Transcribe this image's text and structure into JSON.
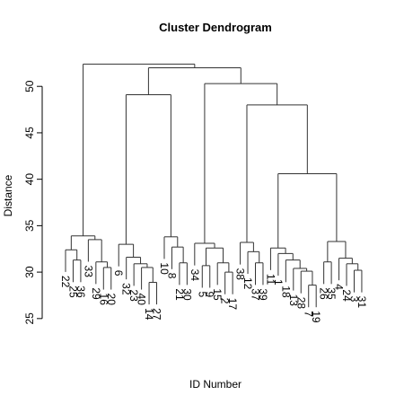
{
  "chart_data": {
    "type": "dendrogram",
    "title": "Cluster Dendrogram",
    "ylabel": "Distance",
    "xlabel": "ID Number",
    "ylim": [
      24.5,
      53.5
    ],
    "yticks": [
      25,
      30,
      35,
      40,
      45,
      50
    ],
    "color": "#333333",
    "tree": {
      "height": 52.4,
      "children": [
        {
          "height": 33.9,
          "children": [
            {
              "height": 32.4,
              "children": [
                {
                  "label": "22"
                },
                {
                  "height": 31.3,
                  "children": [
                    {
                      "label": "25"
                    },
                    {
                      "label": "36"
                    }
                  ]
                }
              ]
            },
            {
              "height": 33.5,
              "children": [
                {
                  "label": "33"
                },
                {
                  "height": 31.1,
                  "children": [
                    {
                      "label": "29"
                    },
                    {
                      "height": 30.5,
                      "children": [
                        {
                          "label": "16"
                        },
                        {
                          "label": "20"
                        }
                      ]
                    }
                  ]
                }
              ]
            }
          ]
        },
        {
          "height": 52.0,
          "children": [
            {
              "height": 49.1,
              "children": [
                {
                  "height": 33.0,
                  "children": [
                    {
                      "label": "6"
                    },
                    {
                      "height": 31.6,
                      "children": [
                        {
                          "label": "32"
                        },
                        {
                          "height": 30.9,
                          "children": [
                            {
                              "label": "23"
                            },
                            {
                              "height": 30.5,
                              "children": [
                                {
                                  "label": "40"
                                },
                                {
                                  "height": 28.9,
                                  "children": [
                                    {
                                      "label": "14"
                                    },
                                    {
                                      "label": "27"
                                    }
                                  ]
                                }
                              ]
                            }
                          ]
                        }
                      ]
                    }
                  ]
                },
                {
                  "height": 33.8,
                  "children": [
                    {
                      "label": "10"
                    },
                    {
                      "height": 32.7,
                      "children": [
                        {
                          "label": "8"
                        },
                        {
                          "height": 31.0,
                          "children": [
                            {
                              "label": "21"
                            },
                            {
                              "label": "30"
                            }
                          ]
                        }
                      ]
                    }
                  ]
                }
              ]
            },
            {
              "height": 50.3,
              "children": [
                {
                  "height": 33.1,
                  "children": [
                    {
                      "label": "34"
                    },
                    {
                      "height": 32.6,
                      "children": [
                        {
                          "height": 30.7,
                          "children": [
                            {
                              "label": "5"
                            },
                            {
                              "label": "9"
                            }
                          ]
                        },
                        {
                          "height": 31.0,
                          "children": [
                            {
                              "label": "15"
                            },
                            {
                              "height": 30.0,
                              "children": [
                                {
                                  "label": "2"
                                },
                                {
                                  "label": "17"
                                }
                              ]
                            }
                          ]
                        }
                      ]
                    }
                  ]
                },
                {
                  "height": 48.0,
                  "children": [
                    {
                      "height": 33.2,
                      "children": [
                        {
                          "label": "38"
                        },
                        {
                          "height": 32.2,
                          "children": [
                            {
                              "label": "12"
                            },
                            {
                              "height": 31.0,
                              "children": [
                                {
                                  "label": "37"
                                },
                                {
                                  "label": "39"
                                }
                              ]
                            }
                          ]
                        }
                      ]
                    },
                    {
                      "height": 40.6,
                      "children": [
                        {
                          "height": 32.6,
                          "children": [
                            {
                              "label": "11"
                            },
                            {
                              "height": 32.0,
                              "children": [
                                {
                                  "label": "1"
                                },
                                {
                                  "height": 31.3,
                                  "children": [
                                    {
                                      "label": "18"
                                    },
                                    {
                                      "height": 30.4,
                                      "children": [
                                        {
                                          "label": "13"
                                        },
                                        {
                                          "height": 30.1,
                                          "children": [
                                            {
                                              "label": "28"
                                            },
                                            {
                                              "height": 28.6,
                                              "children": [
                                                {
                                                  "label": "7"
                                                },
                                                {
                                                  "label": "19"
                                                }
                                              ]
                                            }
                                          ]
                                        }
                                      ]
                                    }
                                  ]
                                }
                              ]
                            }
                          ]
                        },
                        {
                          "height": 33.3,
                          "children": [
                            {
                              "height": 31.1,
                              "children": [
                                {
                                  "label": "26"
                                },
                                {
                                  "label": "35"
                                }
                              ]
                            },
                            {
                              "height": 31.5,
                              "children": [
                                {
                                  "label": "4"
                                },
                                {
                                  "height": 30.9,
                                  "children": [
                                    {
                                      "label": "24"
                                    },
                                    {
                                      "height": 30.2,
                                      "children": [
                                        {
                                          "label": "3"
                                        },
                                        {
                                          "label": "31"
                                        }
                                      ]
                                    }
                                  ]
                                }
                              ]
                            }
                          ]
                        }
                      ]
                    }
                  ]
                }
              ]
            }
          ]
        }
      ]
    }
  }
}
